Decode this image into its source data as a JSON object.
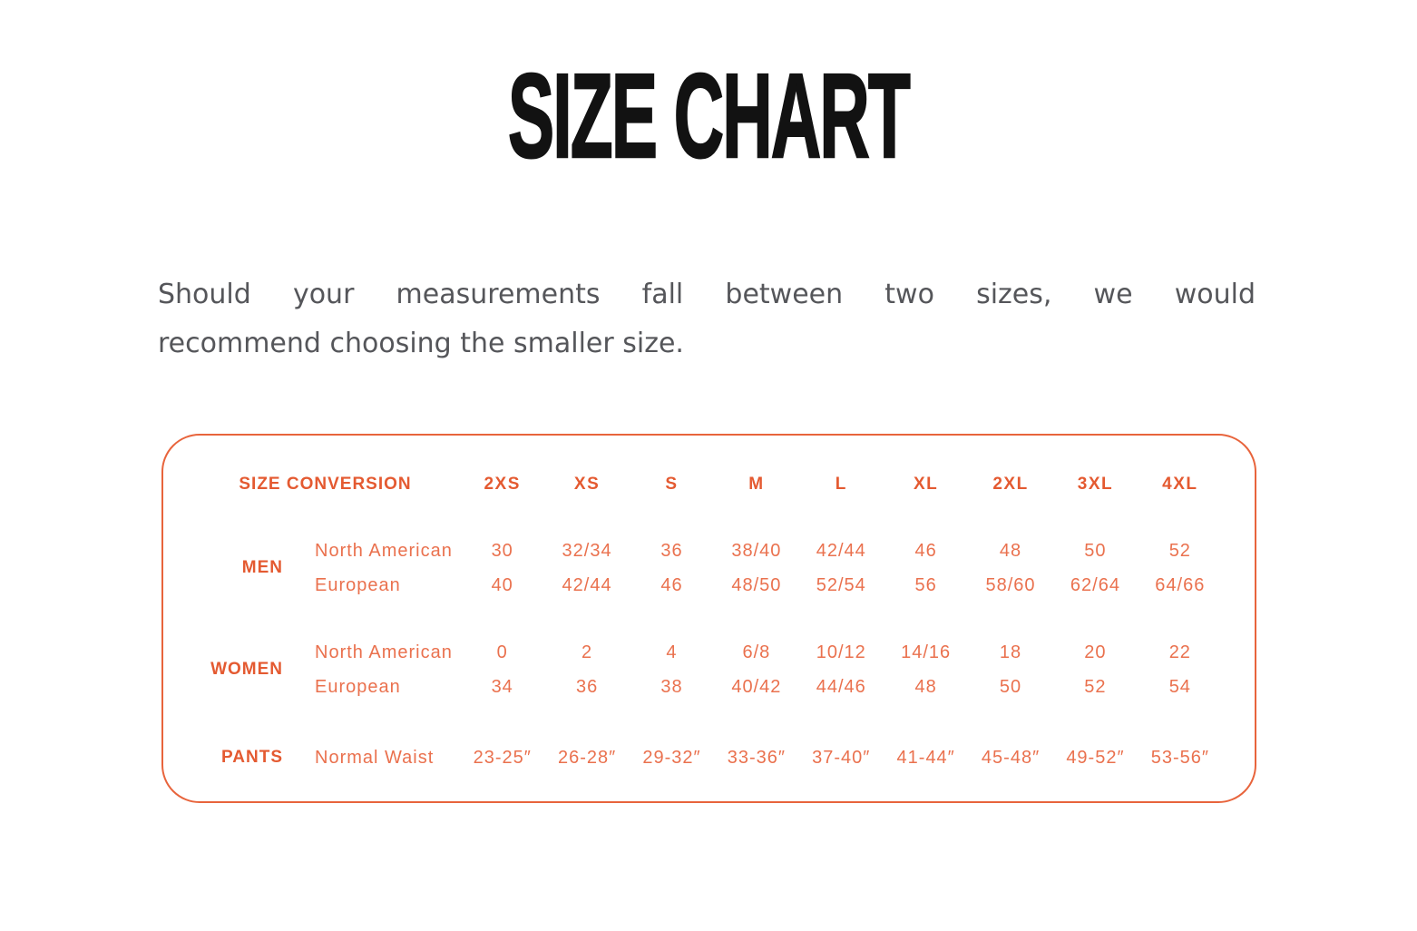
{
  "page": {
    "title": "SIZE CHART",
    "intro_line1": "Should your measurements fall between two sizes, we would",
    "intro_line2": "recommend choosing the smaller size."
  },
  "colors": {
    "accent_border": "#E8643C",
    "accent_bold_text": "#E45A31",
    "accent_light_text": "#EA714E",
    "body_text": "#55565A",
    "title_text": "#121212"
  },
  "size_table": {
    "corner_label": "SIZE CONVERSION",
    "columns": [
      "2XS",
      "XS",
      "S",
      "M",
      "L",
      "XL",
      "2XL",
      "3XL",
      "4XL"
    ],
    "groups": [
      {
        "label": "MEN",
        "rows": [
          {
            "label": "North American",
            "values": [
              "30",
              "32/34",
              "36",
              "38/40",
              "42/44",
              "46",
              "48",
              "50",
              "52"
            ]
          },
          {
            "label": "European",
            "values": [
              "40",
              "42/44",
              "46",
              "48/50",
              "52/54",
              "56",
              "58/60",
              "62/64",
              "64/66"
            ]
          }
        ]
      },
      {
        "label": "WOMEN",
        "rows": [
          {
            "label": "North American",
            "values": [
              "0",
              "2",
              "4",
              "6/8",
              "10/12",
              "14/16",
              "18",
              "20",
              "22"
            ]
          },
          {
            "label": "European",
            "values": [
              "34",
              "36",
              "38",
              "40/42",
              "44/46",
              "48",
              "50",
              "52",
              "54"
            ]
          }
        ]
      },
      {
        "label": "PANTS",
        "rows": [
          {
            "label": "Normal Waist",
            "values": [
              "23-25″",
              "26-28″",
              "29-32″",
              "33-36″",
              "37-40″",
              "41-44″",
              "45-48″",
              "49-52″",
              "53-56″"
            ]
          }
        ]
      }
    ]
  }
}
